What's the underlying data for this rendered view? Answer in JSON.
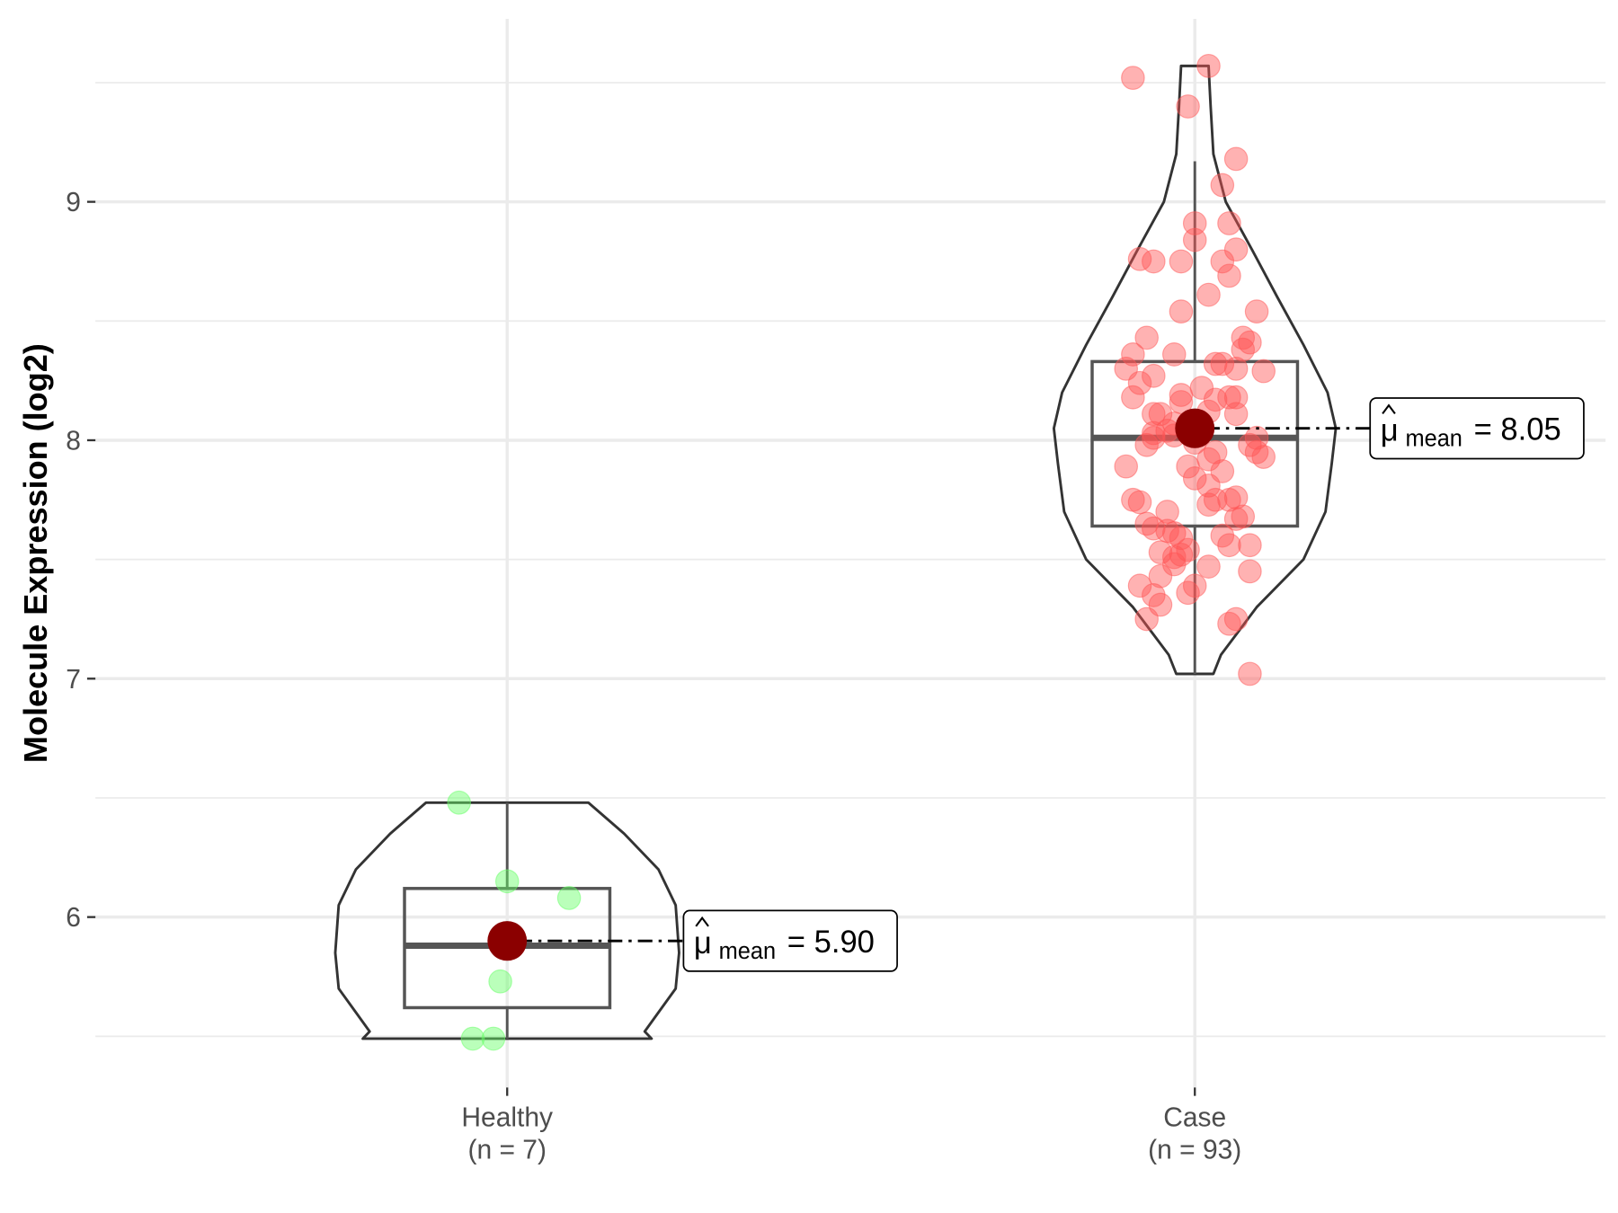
{
  "chart_data": {
    "type": "violin",
    "title": "",
    "xlabel": "",
    "ylabel": "Molecule Expression (log2)",
    "ylim": [
      5.3,
      9.7
    ],
    "yticks": [
      6,
      7,
      8,
      9
    ],
    "ytick_labels": [
      "6",
      "7",
      "8",
      "9"
    ],
    "grid": true,
    "categories": [
      {
        "name": "Healthy",
        "n_label": "(n = 7)",
        "color": "#66ff66",
        "mean": 5.9,
        "mean_label_sub": "mean",
        "mean_label_value": "= 5.90",
        "box": {
          "whisker_low": 5.49,
          "q1": 5.62,
          "median": 5.88,
          "q3": 6.12,
          "whisker_high": 6.48
        },
        "violin": [
          [
            6.48,
            0.118
          ],
          [
            6.35,
            0.17
          ],
          [
            6.2,
            0.22
          ],
          [
            6.05,
            0.245
          ],
          [
            5.85,
            0.25
          ],
          [
            5.7,
            0.245
          ],
          [
            5.6,
            0.22
          ],
          [
            5.52,
            0.2
          ],
          [
            5.49,
            0.21
          ]
        ],
        "points": [
          [
            -0.07,
            6.48
          ],
          [
            0.0,
            6.15
          ],
          [
            0.09,
            6.08
          ],
          [
            -0.01,
            5.73
          ],
          [
            -0.05,
            5.49
          ],
          [
            -0.02,
            5.49
          ],
          [
            0.0,
            5.9
          ]
        ]
      },
      {
        "name": "Case",
        "n_label": "(n = 93)",
        "color": "#ff5555",
        "mean": 8.05,
        "mean_label_sub": "mean",
        "mean_label_value": "= 8.05",
        "box": {
          "whisker_low": 7.02,
          "q1": 7.64,
          "median": 8.01,
          "q3": 8.33,
          "whisker_high": 9.17
        },
        "violin": [
          [
            9.57,
            0.02
          ],
          [
            9.4,
            0.023
          ],
          [
            9.2,
            0.027
          ],
          [
            9.0,
            0.045
          ],
          [
            8.8,
            0.083
          ],
          [
            8.6,
            0.12
          ],
          [
            8.4,
            0.158
          ],
          [
            8.2,
            0.193
          ],
          [
            8.05,
            0.205
          ],
          [
            7.9,
            0.199
          ],
          [
            7.7,
            0.19
          ],
          [
            7.5,
            0.158
          ],
          [
            7.3,
            0.09
          ],
          [
            7.1,
            0.038
          ],
          [
            7.02,
            0.027
          ]
        ],
        "points": [
          [
            -0.09,
            9.52
          ],
          [
            0.02,
            9.57
          ],
          [
            -0.01,
            9.4
          ],
          [
            0.06,
            9.18
          ],
          [
            0.04,
            9.07
          ],
          [
            0,
            8.91
          ],
          [
            0.05,
            8.91
          ],
          [
            0,
            8.84
          ],
          [
            -0.08,
            8.76
          ],
          [
            -0.06,
            8.75
          ],
          [
            -0.02,
            8.75
          ],
          [
            0.04,
            8.75
          ],
          [
            0.06,
            8.8
          ],
          [
            0.05,
            8.69
          ],
          [
            0.02,
            8.61
          ],
          [
            -0.02,
            8.54
          ],
          [
            0.09,
            8.54
          ],
          [
            -0.07,
            8.43
          ],
          [
            0.07,
            8.43
          ],
          [
            0.08,
            8.41
          ],
          [
            0.07,
            8.38
          ],
          [
            -0.03,
            8.36
          ],
          [
            -0.09,
            8.36
          ],
          [
            -0.1,
            8.3
          ],
          [
            0.03,
            8.32
          ],
          [
            0.04,
            8.32
          ],
          [
            -0.06,
            8.27
          ],
          [
            0.1,
            8.29
          ],
          [
            0.06,
            8.3
          ],
          [
            -0.08,
            8.24
          ],
          [
            -0.09,
            8.18
          ],
          [
            -0.02,
            8.19
          ],
          [
            -0.02,
            8.16
          ],
          [
            0.03,
            8.17
          ],
          [
            0.05,
            8.18
          ],
          [
            0.06,
            8.18
          ],
          [
            -0.06,
            8.11
          ],
          [
            -0.05,
            8.11
          ],
          [
            0.02,
            8.12
          ],
          [
            0.06,
            8.11
          ],
          [
            -0.03,
            8.07
          ],
          [
            -0.06,
            8.03
          ],
          [
            -0.06,
            8.01
          ],
          [
            -0.04,
            8.04
          ],
          [
            -0.03,
            8.02
          ],
          [
            0,
            7.99
          ],
          [
            0.09,
            8.01
          ],
          [
            0.08,
            7.98
          ],
          [
            -0.07,
            7.98
          ],
          [
            0.09,
            7.95
          ],
          [
            0.1,
            7.93
          ],
          [
            0.02,
            7.92
          ],
          [
            -0.1,
            7.89
          ],
          [
            -0.01,
            7.89
          ],
          [
            0.04,
            7.87
          ],
          [
            0,
            7.84
          ],
          [
            0.02,
            7.81
          ],
          [
            -0.09,
            7.75
          ],
          [
            -0.08,
            7.74
          ],
          [
            0.03,
            7.75
          ],
          [
            0.06,
            7.76
          ],
          [
            0.05,
            7.75
          ],
          [
            0.02,
            7.73
          ],
          [
            0.06,
            7.67
          ],
          [
            0.07,
            7.68
          ],
          [
            -0.07,
            7.65
          ],
          [
            -0.06,
            7.63
          ],
          [
            -0.04,
            7.62
          ],
          [
            -0.03,
            7.61
          ],
          [
            -0.02,
            7.59
          ],
          [
            0.04,
            7.6
          ],
          [
            0.08,
            7.56
          ],
          [
            0.05,
            7.56
          ],
          [
            -0.05,
            7.53
          ],
          [
            -0.01,
            7.54
          ],
          [
            -0.02,
            7.52
          ],
          [
            -0.03,
            7.51
          ],
          [
            -0.03,
            7.48
          ],
          [
            0.02,
            7.47
          ],
          [
            -0.05,
            7.43
          ],
          [
            0.08,
            7.45
          ],
          [
            -0.08,
            7.39
          ],
          [
            0,
            7.39
          ],
          [
            -0.01,
            7.36
          ],
          [
            -0.06,
            7.35
          ],
          [
            -0.05,
            7.31
          ],
          [
            -0.07,
            7.25
          ],
          [
            0.06,
            7.25
          ],
          [
            0.05,
            7.23
          ],
          [
            0.08,
            7.02
          ],
          [
            0.01,
            8.22
          ],
          [
            -0.04,
            7.7
          ],
          [
            0.03,
            7.95
          ]
        ]
      }
    ]
  }
}
